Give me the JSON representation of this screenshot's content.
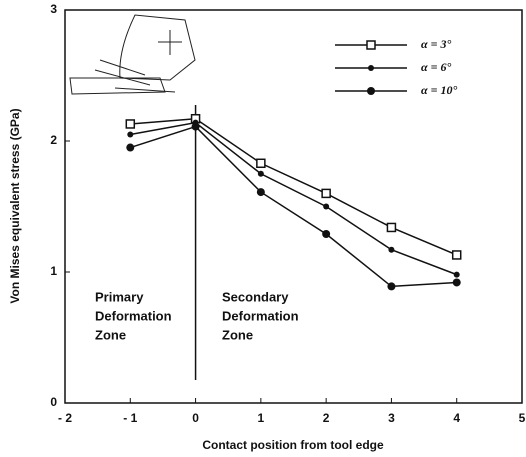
{
  "chart_data": {
    "type": "line",
    "xlabel": "Contact position from tool edge",
    "ylabel": "Von Mises equivalent stress (GPa)",
    "xlim": [
      -2,
      5
    ],
    "xticks": [
      {
        "value": -2,
        "label": "- 2"
      },
      {
        "value": -1,
        "label": "- 1"
      },
      0,
      1,
      2,
      3,
      4,
      5
    ],
    "ylim": [
      0,
      3
    ],
    "yticks": [
      0,
      1,
      2,
      3
    ],
    "reference_line_x": 0,
    "annotations": [
      [
        "Primary",
        "Deformation",
        "Zone"
      ],
      [
        "Secondary",
        "Deformation",
        "Zone"
      ]
    ],
    "legend": "upper right",
    "series": [
      {
        "name": "α = 3°",
        "color": "#111111",
        "marker": "square",
        "x": [
          -1,
          0,
          1,
          2,
          3,
          4
        ],
        "values": [
          2.13,
          2.17,
          1.83,
          1.6,
          1.34,
          1.13
        ]
      },
      {
        "name": "α = 6°",
        "color": "#111111",
        "marker": "dot",
        "x": [
          -1,
          0,
          1,
          2,
          3,
          4
        ],
        "values": [
          2.05,
          2.14,
          1.75,
          1.5,
          1.17,
          0.98
        ]
      },
      {
        "name": "α = 10°",
        "color": "#111111",
        "marker": "disc",
        "x": [
          -1,
          0,
          1,
          2,
          3,
          4
        ],
        "values": [
          1.95,
          2.11,
          1.61,
          1.29,
          0.89,
          0.92
        ]
      }
    ]
  }
}
